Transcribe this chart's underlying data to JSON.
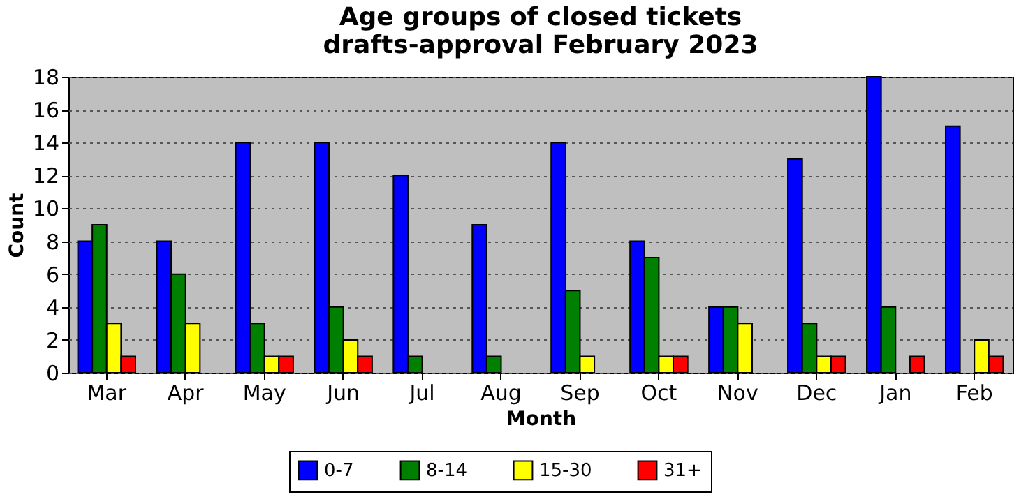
{
  "chart_data": {
    "type": "bar",
    "title": "Age groups of closed tickets",
    "subtitle": "drafts-approval February 2023",
    "xlabel": "Month",
    "ylabel": "Count",
    "categories": [
      "Mar",
      "Apr",
      "May",
      "Jun",
      "Jul",
      "Aug",
      "Sep",
      "Oct",
      "Nov",
      "Dec",
      "Jan",
      "Feb"
    ],
    "series": [
      {
        "name": "0-7",
        "color": "#0000ff",
        "values": [
          8,
          8,
          14,
          14,
          12,
          9,
          14,
          8,
          4,
          13,
          18,
          15
        ]
      },
      {
        "name": "8-14",
        "color": "#008000",
        "values": [
          9,
          6,
          3,
          4,
          1,
          1,
          5,
          7,
          4,
          3,
          4,
          0
        ]
      },
      {
        "name": "15-30",
        "color": "#ffff00",
        "values": [
          3,
          3,
          1,
          2,
          0,
          0,
          1,
          1,
          3,
          1,
          0,
          2
        ]
      },
      {
        "name": "31+",
        "color": "#ff0000",
        "values": [
          1,
          0,
          1,
          1,
          0,
          0,
          0,
          1,
          0,
          1,
          1,
          1
        ]
      }
    ],
    "ylim": [
      0,
      18
    ],
    "yticks": [
      0,
      2,
      4,
      6,
      8,
      10,
      12,
      14,
      16,
      18
    ],
    "grid": "y",
    "legend": "bottom"
  }
}
